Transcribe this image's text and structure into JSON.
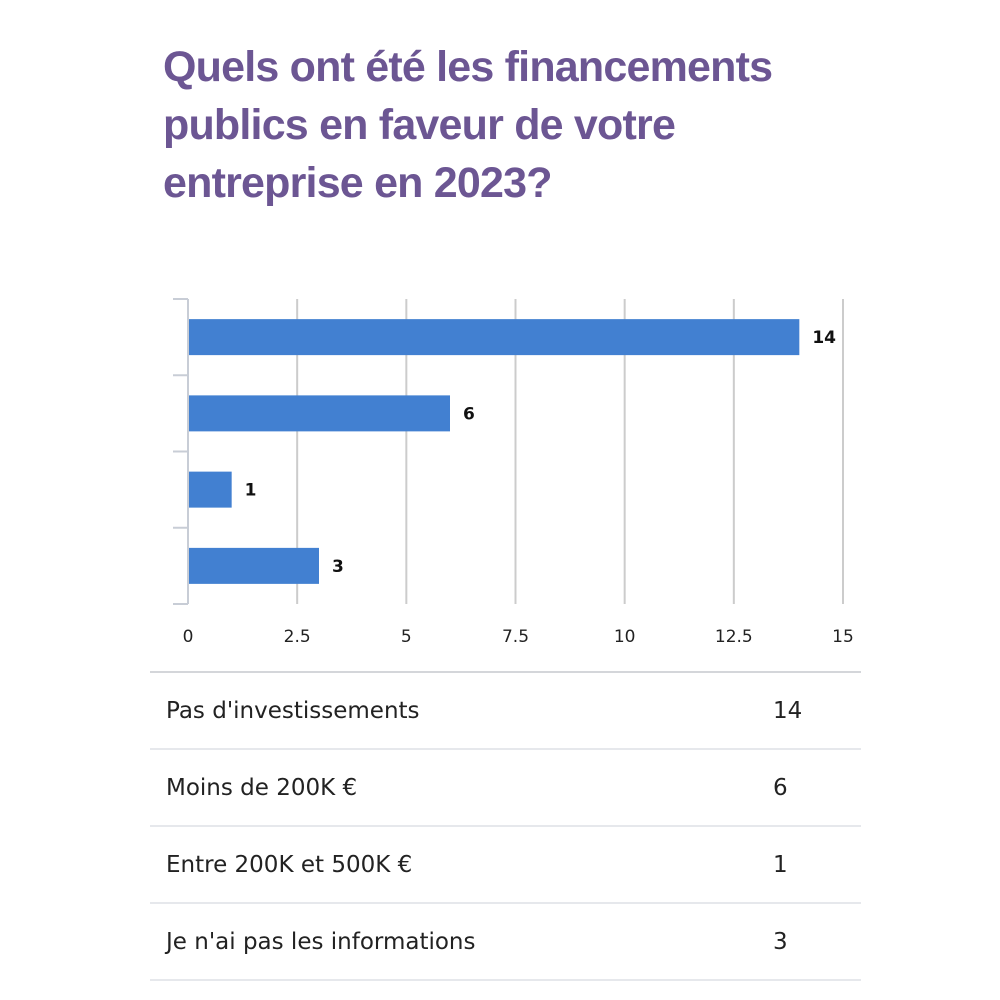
{
  "title": "Quels ont été les financements publics en faveur de votre entreprise en 2023?",
  "colors": {
    "title": "#6c5693",
    "bar": "#4280d1",
    "grid": "#cccccc",
    "axis": "#c8cdd6"
  },
  "chart_data": {
    "type": "bar",
    "orientation": "horizontal",
    "title": "Quels ont été les financements publics en faveur de votre entreprise en 2023?",
    "categories": [
      "Pas d'investissements",
      "Moins de 200K €",
      "Entre 200K et 500K €",
      "Je n'ai pas les informations"
    ],
    "values": [
      14,
      6,
      1,
      3
    ],
    "value_labels": [
      "14",
      "6",
      "1",
      "3"
    ],
    "xlabel": "",
    "ylabel": "",
    "xlim": [
      0,
      15
    ],
    "xticks": [
      0,
      2.5,
      5,
      7.5,
      10,
      12.5,
      15
    ],
    "xtick_labels": [
      "0",
      "2.5",
      "5",
      "7.5",
      "10",
      "12.5",
      "15"
    ],
    "grid": true,
    "legend": "none"
  },
  "table": {
    "rows": [
      {
        "label": "Pas d'investissements",
        "value": "14"
      },
      {
        "label": "Moins de 200K €",
        "value": "6"
      },
      {
        "label": "Entre 200K et 500K €",
        "value": "1"
      },
      {
        "label": "Je n'ai pas les informations",
        "value": "3"
      }
    ]
  }
}
